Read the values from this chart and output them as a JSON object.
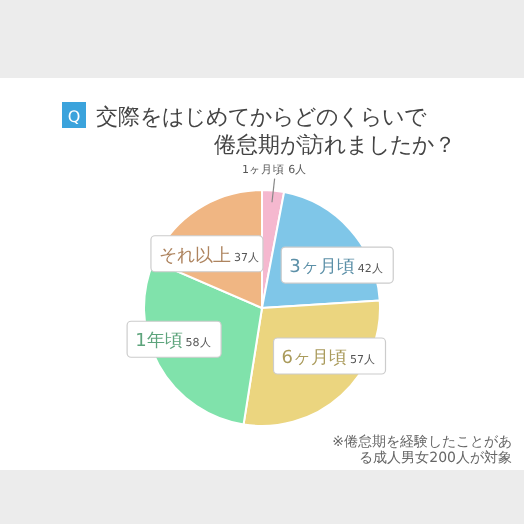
{
  "chart_data": {
    "type": "pie",
    "title": "交際をはじめてからどのくらいで倦怠期が訪れましたか？",
    "categories": [
      "1ヶ月頃",
      "3ヶ月頃",
      "6ヶ月頃",
      "1年頃",
      "それ以上"
    ],
    "values": [
      6,
      42,
      57,
      58,
      37
    ],
    "value_labels": [
      "6人",
      "42人",
      "57人",
      "58人",
      "37人"
    ],
    "colors": [
      "#f5b8cf",
      "#7fc6e8",
      "#ebd57f",
      "#80e2ab",
      "#f0b683"
    ],
    "annotations": [
      "Q",
      "※倦怠期を経験したことがある成人男女200人が対象"
    ]
  }
}
